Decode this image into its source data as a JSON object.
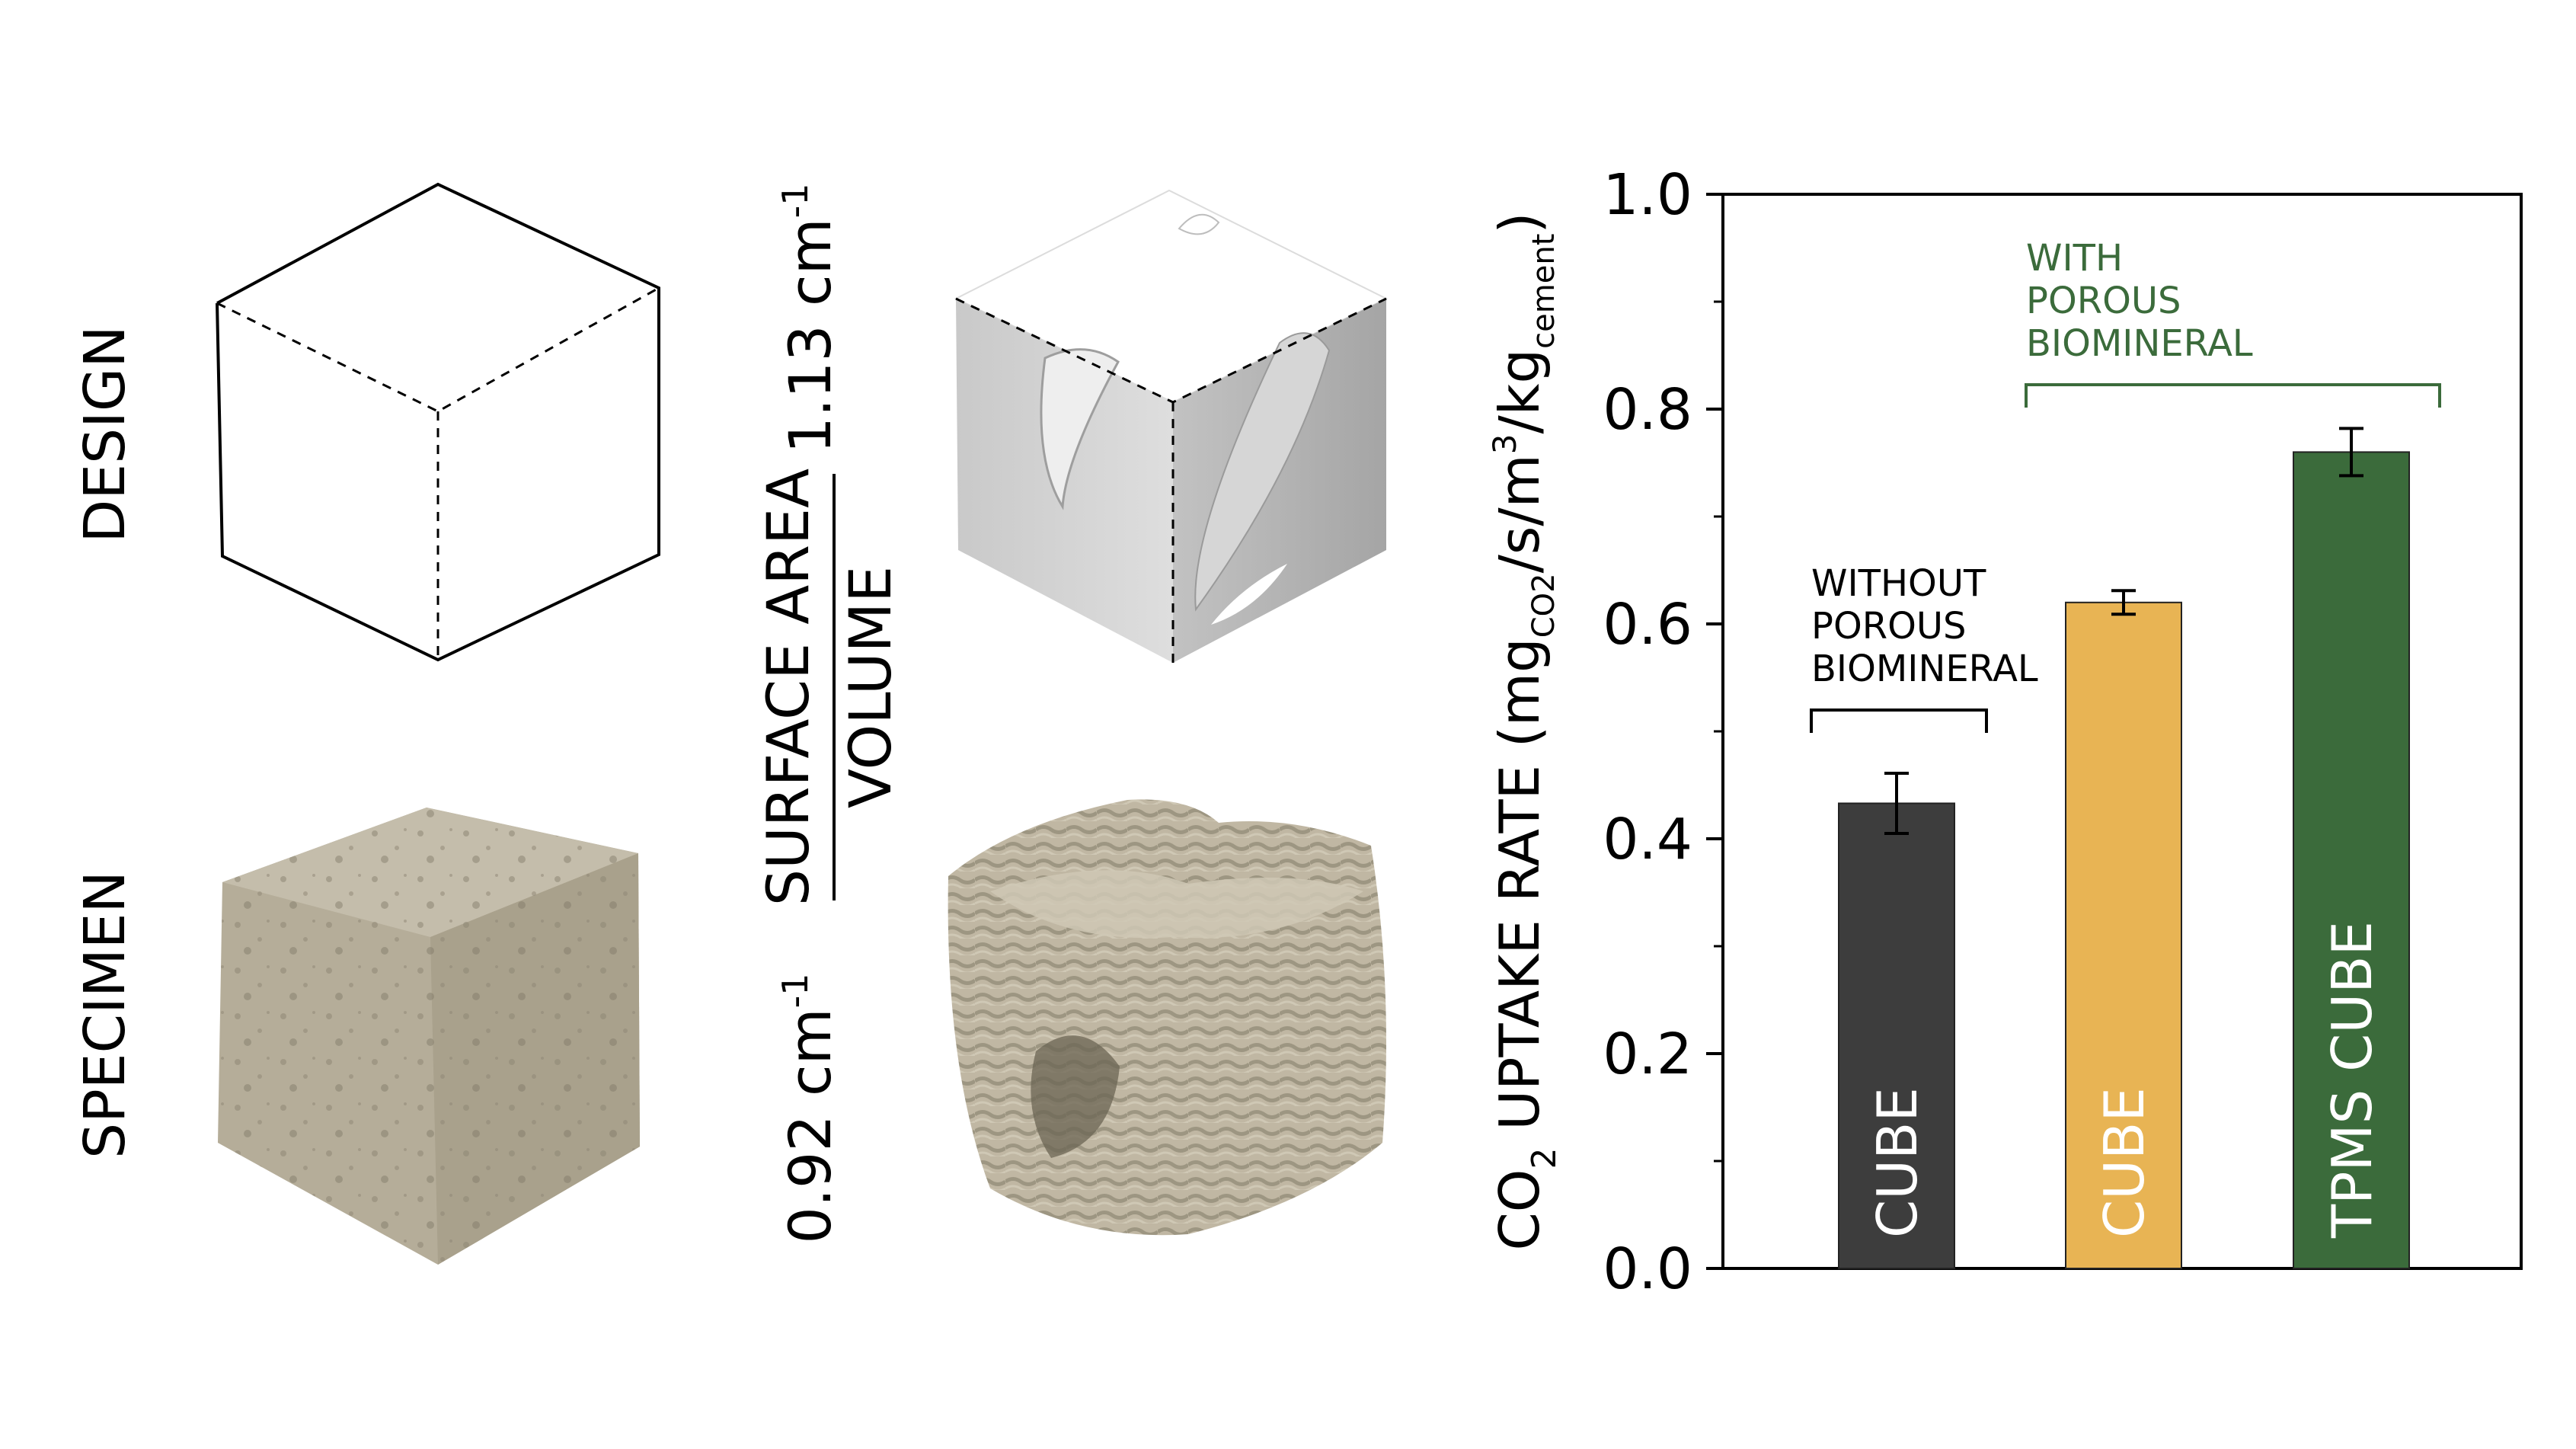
{
  "row_labels": {
    "design": "DESIGN",
    "specimen": "SPECIMEN"
  },
  "ratio": {
    "numerator": "SURFACE AREA",
    "denominator": "VOLUME",
    "high_value": "1.13 cm",
    "low_value": "0.92 cm",
    "exponent": "-1"
  },
  "colors": {
    "bar_without": "#3d3d3d",
    "bar_with_cube": "#e8b454",
    "bar_with_tpms": "#3b6b3b",
    "group_with": "#3b6b3b",
    "group_without": "#000000",
    "concrete": "#b9b19e"
  },
  "chart_data": {
    "type": "bar",
    "ylabel": {
      "prefix": "CO",
      "prefix_sub": "2",
      "main": " UPTAKE RATE (mg",
      "sub1": "CO2",
      "mid": "/s/m",
      "sup": "3",
      "mid2": "/kg",
      "sub2": "cement",
      "end": ")"
    },
    "ylim": [
      0.0,
      1.0
    ],
    "yticks": [
      "0.0",
      "0.2",
      "0.4",
      "0.6",
      "0.8",
      "1.0"
    ],
    "ytick_values": [
      0.0,
      0.2,
      0.4,
      0.6,
      0.8,
      1.0
    ],
    "bars": [
      {
        "label": "CUBE",
        "value": 0.433,
        "error": 0.028,
        "color": "#3d3d3d"
      },
      {
        "label": "CUBE",
        "value": 0.62,
        "error": 0.011,
        "color": "#e8b454"
      },
      {
        "label": "TPMS CUBE",
        "value": 0.76,
        "error": 0.022,
        "color": "#3b6b3b"
      }
    ],
    "groups": [
      {
        "lines": [
          "WITHOUT",
          "POROUS",
          "BIOMINERAL"
        ],
        "color": "#000000",
        "bars": [
          0
        ]
      },
      {
        "lines": [
          "WITH",
          "POROUS",
          "BIOMINERAL"
        ],
        "color": "#3b6b3b",
        "bars": [
          1,
          2
        ]
      }
    ]
  }
}
